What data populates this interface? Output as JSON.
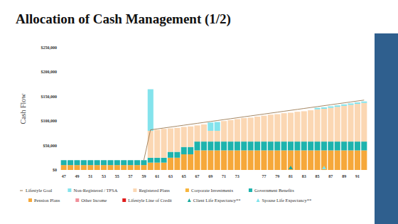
{
  "chart_data": {
    "type": "bar",
    "title": "Allocation of Cash Management (1/2)",
    "y_label": "Cash Flow",
    "stacked": true,
    "grid": false,
    "legend": "bottom",
    "ylim": [
      0,
      250000
    ],
    "yticks": [
      {
        "value": 0,
        "label": "$0"
      },
      {
        "value": 50000,
        "label": "$50,000"
      },
      {
        "value": 100000,
        "label": "$100,000"
      },
      {
        "value": 150000,
        "label": "$150,000"
      },
      {
        "value": 200000,
        "label": "$200,000"
      },
      {
        "value": 250000,
        "label": "$250,000"
      }
    ],
    "categories": [
      "47",
      null,
      "49",
      null,
      "51",
      null,
      "53",
      null,
      "55",
      null,
      "57",
      null,
      "59",
      null,
      "61",
      null,
      "63",
      null,
      "65",
      null,
      "67",
      null,
      "69",
      null,
      "71",
      null,
      "73",
      null,
      null,
      null,
      "77",
      null,
      "79",
      null,
      "81",
      null,
      "83",
      null,
      "85",
      null,
      "87",
      null,
      "89",
      null,
      "91",
      null
    ],
    "series": [
      {
        "name": "Lifestyle Goal",
        "type": "line",
        "color": "#9c7a52",
        "values": [
          null,
          null,
          null,
          null,
          null,
          null,
          null,
          null,
          null,
          null,
          null,
          null,
          20000,
          82000,
          83900,
          85800,
          87700,
          89600,
          91500,
          93400,
          95300,
          97200,
          99100,
          101000,
          102900,
          104800,
          106700,
          108600,
          110500,
          112400,
          114300,
          116200,
          118100,
          120000,
          121900,
          123800,
          125700,
          127600,
          129500,
          131400,
          133300,
          135200,
          137100,
          139000,
          140900,
          142800
        ]
      },
      {
        "name": "Non-Registered / TFSA",
        "type": "bar",
        "color": "#84e3ec",
        "values": [
          null,
          null,
          null,
          null,
          null,
          null,
          null,
          null,
          null,
          null,
          null,
          null,
          null,
          85000,
          null,
          null,
          null,
          null,
          null,
          null,
          null,
          null,
          17000,
          18000,
          null,
          null,
          null,
          null,
          null,
          null,
          null,
          null,
          null,
          null,
          null,
          null,
          null,
          null,
          3000,
          3000,
          3000,
          3000,
          3000,
          3000,
          3000,
          3000
        ]
      },
      {
        "name": "Registered Plans",
        "type": "bar",
        "color": "#fbd7b3",
        "values": [
          null,
          null,
          null,
          null,
          null,
          null,
          null,
          null,
          null,
          null,
          null,
          null,
          null,
          55000,
          57000,
          59000,
          48000,
          49000,
          41000,
          42000,
          33000,
          35000,
          22000,
          22000,
          42000,
          44000,
          46000,
          48000,
          49000,
          51000,
          53000,
          55000,
          56000,
          58000,
          59000,
          61000,
          62000,
          64000,
          66000,
          67000,
          69000,
          71000,
          73000,
          75000,
          77000,
          79000
        ]
      },
      {
        "name": "Corporate Investments",
        "type": "bar",
        "color": "#f7b53c",
        "values": [
          null,
          null,
          null,
          null,
          null,
          null,
          null,
          null,
          null,
          null,
          null,
          null,
          null,
          null,
          null,
          null,
          null,
          null,
          null,
          null,
          null,
          null,
          null,
          null,
          null,
          null,
          null,
          null,
          null,
          null,
          null,
          null,
          null,
          null,
          null,
          null,
          null,
          null,
          null,
          null,
          null,
          null,
          null,
          null,
          null,
          null
        ]
      },
      {
        "name": "Government Benefits",
        "type": "bar",
        "color": "#1db3ad",
        "values": [
          10000,
          10000,
          10000,
          10000,
          10000,
          10000,
          10000,
          10000,
          10000,
          10000,
          10000,
          10000,
          10000,
          10000,
          10000,
          10000,
          12000,
          12000,
          15000,
          15000,
          18000,
          18000,
          18000,
          18000,
          18000,
          18000,
          18000,
          18000,
          18000,
          18000,
          18000,
          18000,
          18000,
          18000,
          18000,
          18000,
          18000,
          18000,
          18000,
          18000,
          18000,
          18000,
          18000,
          18000,
          18000,
          18000
        ]
      },
      {
        "name": "Pension Plans",
        "type": "bar",
        "color": "#f6a83a",
        "values": [
          10000,
          10000,
          10000,
          10000,
          10000,
          10000,
          10000,
          10000,
          10000,
          10000,
          10000,
          10000,
          10000,
          15000,
          15000,
          15000,
          25000,
          25000,
          32000,
          32000,
          40000,
          40000,
          40000,
          40000,
          40000,
          40000,
          40000,
          40000,
          40000,
          40000,
          40000,
          40000,
          40000,
          40000,
          40000,
          40000,
          40000,
          40000,
          40000,
          40000,
          40000,
          40000,
          40000,
          40000,
          40000,
          40000
        ]
      },
      {
        "name": "Other Income",
        "type": "bar",
        "color": "#f08f9a",
        "values": [
          null,
          null,
          null,
          null,
          null,
          null,
          null,
          null,
          null,
          null,
          null,
          null,
          null,
          null,
          null,
          null,
          null,
          null,
          null,
          null,
          null,
          null,
          null,
          null,
          null,
          null,
          null,
          null,
          null,
          null,
          null,
          null,
          null,
          null,
          null,
          null,
          null,
          null,
          null,
          null,
          null,
          null,
          null,
          null,
          null,
          null
        ]
      },
      {
        "name": "Lifestyle Line of Credit",
        "type": "bar",
        "color": "#e01b1b",
        "values": [
          null,
          null,
          null,
          null,
          null,
          null,
          null,
          null,
          null,
          null,
          null,
          null,
          null,
          null,
          null,
          null,
          null,
          null,
          null,
          null,
          null,
          null,
          null,
          null,
          null,
          null,
          null,
          null,
          null,
          null,
          null,
          null,
          null,
          null,
          null,
          null,
          null,
          null,
          null,
          null,
          null,
          null,
          null,
          null,
          null,
          null
        ]
      },
      {
        "name": "Client Life Expectancy**",
        "type": "scatter",
        "marker": "triangle",
        "color": "#17a99c",
        "values": [
          null,
          null,
          null,
          null,
          null,
          null,
          null,
          null,
          null,
          null,
          null,
          null,
          null,
          null,
          null,
          null,
          null,
          null,
          null,
          null,
          null,
          null,
          null,
          null,
          null,
          null,
          null,
          null,
          null,
          null,
          null,
          null,
          null,
          null,
          0,
          null,
          null,
          null,
          null,
          null,
          null,
          null,
          null,
          null,
          null,
          null
        ]
      },
      {
        "name": "Spouse Life Expectancy**",
        "type": "scatter",
        "marker": "triangle",
        "color": "#7ee3ec",
        "values": [
          null,
          null,
          null,
          null,
          null,
          null,
          null,
          null,
          null,
          null,
          null,
          null,
          null,
          null,
          null,
          null,
          null,
          null,
          null,
          null,
          null,
          null,
          null,
          null,
          null,
          null,
          null,
          null,
          null,
          null,
          null,
          null,
          null,
          null,
          null,
          null,
          null,
          null,
          null,
          0,
          null,
          null,
          null,
          null,
          null,
          null
        ]
      }
    ]
  }
}
